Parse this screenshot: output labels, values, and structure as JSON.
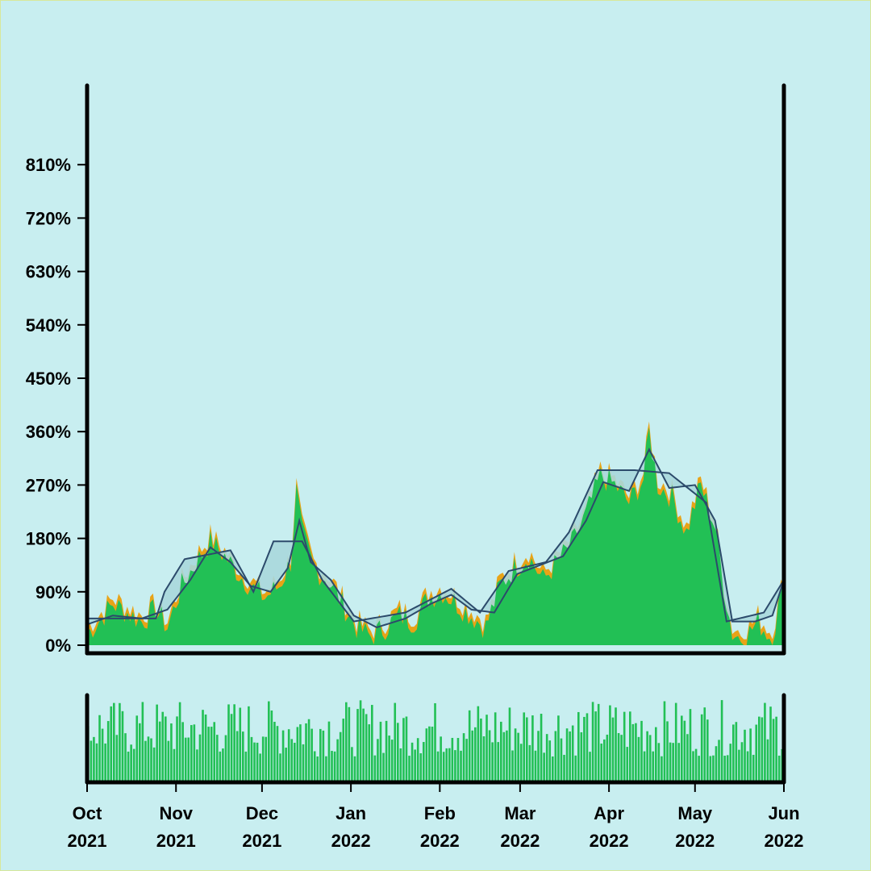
{
  "colors": {
    "background": "#c8eef0",
    "area_fill": "#22c055",
    "highlight": "#e8a317",
    "ma_line": "#2c4a6b",
    "band_fill": "#a9d7dc",
    "volume": "#22c055",
    "axis": "#000000"
  },
  "chart_data": {
    "type": "area",
    "title": "",
    "xlabel": "",
    "ylabel": "",
    "x_range": [
      "2021-10-01",
      "2022-06-01"
    ],
    "ylim": [
      0,
      900
    ],
    "y_ticks": [
      {
        "value": 0,
        "label": "0%"
      },
      {
        "value": 90,
        "label": "90%"
      },
      {
        "value": 180,
        "label": "180%"
      },
      {
        "value": 270,
        "label": "270%"
      },
      {
        "value": 360,
        "label": "360%"
      },
      {
        "value": 450,
        "label": "450%"
      },
      {
        "value": 540,
        "label": "540%"
      },
      {
        "value": 630,
        "label": "630%"
      },
      {
        "value": 720,
        "label": "720%"
      },
      {
        "value": 810,
        "label": "810%"
      }
    ],
    "x_ticks": [
      {
        "date": "2021-10-01",
        "month": "Oct",
        "year": "2021"
      },
      {
        "date": "2021-11-01",
        "month": "Nov",
        "year": "2021"
      },
      {
        "date": "2021-12-01",
        "month": "Dec",
        "year": "2021"
      },
      {
        "date": "2022-01-01",
        "month": "Jan",
        "year": "2022"
      },
      {
        "date": "2022-02-01",
        "month": "Feb",
        "year": "2022"
      },
      {
        "date": "2022-03-01",
        "month": "Mar",
        "year": "2022"
      },
      {
        "date": "2022-04-01",
        "month": "Apr",
        "year": "2022"
      },
      {
        "date": "2022-05-01",
        "month": "May",
        "year": "2022"
      },
      {
        "date": "2022-06-01",
        "month": "Jun",
        "year": "2022"
      }
    ],
    "series": [
      {
        "values": [
          {
            "x": "2021-10-01",
            "y": 20
          },
          {
            "x": "2021-10-05",
            "y": 40
          },
          {
            "x": "2021-10-10",
            "y": 70
          },
          {
            "x": "2021-10-15",
            "y": 55
          },
          {
            "x": "2021-10-20",
            "y": 40
          },
          {
            "x": "2021-10-25",
            "y": 60
          },
          {
            "x": "2021-10-29",
            "y": 30
          },
          {
            "x": "2021-11-03",
            "y": 100
          },
          {
            "x": "2021-11-08",
            "y": 140
          },
          {
            "x": "2021-11-13",
            "y": 175
          },
          {
            "x": "2021-11-18",
            "y": 150
          },
          {
            "x": "2021-11-23",
            "y": 120
          },
          {
            "x": "2021-11-28",
            "y": 95
          },
          {
            "x": "2021-12-02",
            "y": 80
          },
          {
            "x": "2021-12-07",
            "y": 100
          },
          {
            "x": "2021-12-11",
            "y": 140
          },
          {
            "x": "2021-12-13",
            "y": 260
          },
          {
            "x": "2021-12-15",
            "y": 190
          },
          {
            "x": "2021-12-19",
            "y": 130
          },
          {
            "x": "2021-12-24",
            "y": 110
          },
          {
            "x": "2021-12-29",
            "y": 70
          },
          {
            "x": "2022-01-03",
            "y": 30
          },
          {
            "x": "2022-01-08",
            "y": 15
          },
          {
            "x": "2022-01-13",
            "y": 30
          },
          {
            "x": "2022-01-18",
            "y": 50
          },
          {
            "x": "2022-01-23",
            "y": 40
          },
          {
            "x": "2022-01-28",
            "y": 80
          },
          {
            "x": "2022-02-02",
            "y": 90
          },
          {
            "x": "2022-02-07",
            "y": 70
          },
          {
            "x": "2022-02-12",
            "y": 50
          },
          {
            "x": "2022-02-17",
            "y": 30
          },
          {
            "x": "2022-02-22",
            "y": 100
          },
          {
            "x": "2022-02-27",
            "y": 130
          },
          {
            "x": "2022-03-04",
            "y": 150
          },
          {
            "x": "2022-03-09",
            "y": 110
          },
          {
            "x": "2022-03-14",
            "y": 140
          },
          {
            "x": "2022-03-19",
            "y": 170
          },
          {
            "x": "2022-03-24",
            "y": 220
          },
          {
            "x": "2022-03-29",
            "y": 285
          },
          {
            "x": "2022-04-03",
            "y": 270
          },
          {
            "x": "2022-04-08",
            "y": 240
          },
          {
            "x": "2022-04-13",
            "y": 280
          },
          {
            "x": "2022-04-15",
            "y": 360
          },
          {
            "x": "2022-04-18",
            "y": 270
          },
          {
            "x": "2022-04-23",
            "y": 250
          },
          {
            "x": "2022-04-28",
            "y": 190
          },
          {
            "x": "2022-05-03",
            "y": 270
          },
          {
            "x": "2022-05-08",
            "y": 200
          },
          {
            "x": "2022-05-11",
            "y": 100
          },
          {
            "x": "2022-05-14",
            "y": 20
          },
          {
            "x": "2022-05-18",
            "y": 10
          },
          {
            "x": "2022-05-23",
            "y": 40
          },
          {
            "x": "2022-05-28",
            "y": 10
          },
          {
            "x": "2022-06-01",
            "y": 110
          }
        ]
      },
      {
        "values": [
          {
            "x": "2021-10-01",
            "y": 35
          },
          {
            "x": "2021-10-10",
            "y": 50
          },
          {
            "x": "2021-10-20",
            "y": 45
          },
          {
            "x": "2021-10-29",
            "y": 60
          },
          {
            "x": "2021-11-06",
            "y": 110
          },
          {
            "x": "2021-11-13",
            "y": 165
          },
          {
            "x": "2021-11-20",
            "y": 140
          },
          {
            "x": "2021-11-27",
            "y": 100
          },
          {
            "x": "2021-12-04",
            "y": 90
          },
          {
            "x": "2021-12-10",
            "y": 130
          },
          {
            "x": "2021-12-14",
            "y": 210
          },
          {
            "x": "2021-12-18",
            "y": 140
          },
          {
            "x": "2021-12-25",
            "y": 110
          },
          {
            "x": "2022-01-02",
            "y": 50
          },
          {
            "x": "2022-01-10",
            "y": 30
          },
          {
            "x": "2022-01-20",
            "y": 45
          },
          {
            "x": "2022-01-29",
            "y": 70
          },
          {
            "x": "2022-02-05",
            "y": 85
          },
          {
            "x": "2022-02-12",
            "y": 60
          },
          {
            "x": "2022-02-20",
            "y": 55
          },
          {
            "x": "2022-02-28",
            "y": 120
          },
          {
            "x": "2022-03-08",
            "y": 135
          },
          {
            "x": "2022-03-16",
            "y": 150
          },
          {
            "x": "2022-03-24",
            "y": 210
          },
          {
            "x": "2022-03-30",
            "y": 275
          },
          {
            "x": "2022-04-08",
            "y": 260
          },
          {
            "x": "2022-04-15",
            "y": 330
          },
          {
            "x": "2022-04-22",
            "y": 265
          },
          {
            "x": "2022-05-01",
            "y": 270
          },
          {
            "x": "2022-05-08",
            "y": 210
          },
          {
            "x": "2022-05-14",
            "y": 40
          },
          {
            "x": "2022-05-22",
            "y": 40
          },
          {
            "x": "2022-05-28",
            "y": 50
          },
          {
            "x": "2022-06-01",
            "y": 110
          }
        ]
      },
      {
        "values": [
          {
            "x": "2021-10-01",
            "y": 45
          },
          {
            "x": "2021-10-25",
            "y": 45
          },
          {
            "x": "2021-10-28",
            "y": 90
          },
          {
            "x": "2021-11-04",
            "y": 145
          },
          {
            "x": "2021-11-20",
            "y": 160
          },
          {
            "x": "2021-11-28",
            "y": 90
          },
          {
            "x": "2021-12-05",
            "y": 175
          },
          {
            "x": "2021-12-15",
            "y": 175
          },
          {
            "x": "2021-12-22",
            "y": 110
          },
          {
            "x": "2022-01-02",
            "y": 40
          },
          {
            "x": "2022-01-20",
            "y": 55
          },
          {
            "x": "2022-02-05",
            "y": 95
          },
          {
            "x": "2022-02-15",
            "y": 55
          },
          {
            "x": "2022-02-25",
            "y": 125
          },
          {
            "x": "2022-03-10",
            "y": 140
          },
          {
            "x": "2022-03-18",
            "y": 190
          },
          {
            "x": "2022-03-28",
            "y": 295
          },
          {
            "x": "2022-04-10",
            "y": 295
          },
          {
            "x": "2022-04-22",
            "y": 290
          },
          {
            "x": "2022-05-05",
            "y": 240
          },
          {
            "x": "2022-05-12",
            "y": 40
          },
          {
            "x": "2022-05-25",
            "y": 55
          },
          {
            "x": "2022-06-01",
            "y": 110
          }
        ]
      }
    ],
    "volume": {
      "approx_min": 0.3,
      "approx_max": 1.0,
      "note_counts": "daily bars Oct 2021 – Jun 2022"
    }
  }
}
